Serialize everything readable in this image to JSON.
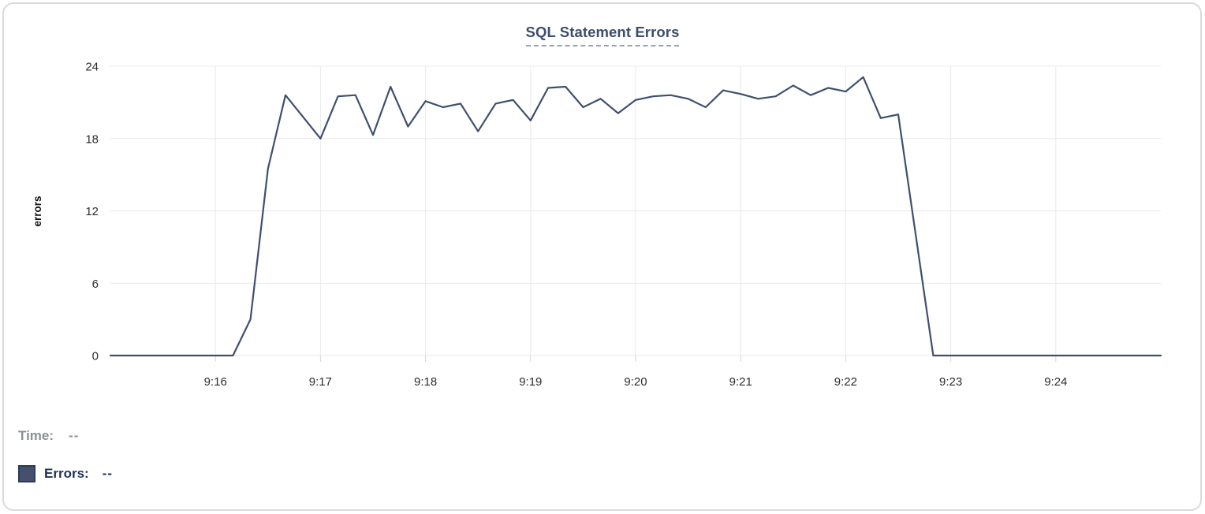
{
  "title": "SQL Statement Errors",
  "tooltip": {
    "time_label": "Time:",
    "time_value": "--",
    "errors_label": "Errors:",
    "errors_value": "--"
  },
  "colors": {
    "line": "#3f4f6f",
    "swatch_fill": "#44506c",
    "swatch_border": "#2c3b5d",
    "title": "#3c4e6d",
    "time_row": "#8b8f96",
    "errors_row": "#1f3156",
    "gridline": "#e8e8e8"
  },
  "chart_data": {
    "type": "line",
    "title": "SQL Statement Errors",
    "xlabel": "",
    "ylabel": "errors",
    "ylim": [
      0,
      24
    ],
    "y_ticks": [
      0,
      6,
      12,
      18,
      24
    ],
    "x_ticks": [
      "9:16",
      "9:17",
      "9:18",
      "9:19",
      "9:20",
      "9:21",
      "9:22",
      "9:23",
      "9:24"
    ],
    "x_range": [
      "9:15:00",
      "9:25:00"
    ],
    "grid": true,
    "legend_position": "bottom-left",
    "series": [
      {
        "name": "Errors",
        "color": "#3f4f6f",
        "times": [
          "9:15:00",
          "9:15:10",
          "9:15:20",
          "9:15:30",
          "9:15:40",
          "9:15:50",
          "9:16:00",
          "9:16:10",
          "9:16:20",
          "9:16:30",
          "9:16:40",
          "9:16:50",
          "9:17:00",
          "9:17:10",
          "9:17:20",
          "9:17:30",
          "9:17:40",
          "9:17:50",
          "9:18:00",
          "9:18:10",
          "9:18:20",
          "9:18:30",
          "9:18:40",
          "9:18:50",
          "9:19:00",
          "9:19:10",
          "9:19:20",
          "9:19:30",
          "9:19:40",
          "9:19:50",
          "9:20:00",
          "9:20:10",
          "9:20:20",
          "9:20:30",
          "9:20:40",
          "9:20:50",
          "9:21:00",
          "9:21:10",
          "9:21:20",
          "9:21:30",
          "9:21:40",
          "9:21:50",
          "9:22:00",
          "9:22:10",
          "9:22:20",
          "9:22:30",
          "9:22:40",
          "9:22:50",
          "9:23:00",
          "9:23:10",
          "9:23:20",
          "9:23:30",
          "9:23:40",
          "9:23:50",
          "9:24:00",
          "9:24:10",
          "9:24:20",
          "9:24:30",
          "9:24:40",
          "9:24:50",
          "9:25:00"
        ],
        "values": [
          0,
          0,
          0,
          0,
          0,
          0,
          0,
          0,
          3,
          15.5,
          21.6,
          19.8,
          18,
          21.5,
          21.6,
          18.3,
          22.3,
          19,
          21.1,
          20.6,
          20.9,
          18.6,
          20.9,
          21.2,
          19.5,
          22.2,
          22.3,
          20.6,
          21.3,
          20.1,
          21.2,
          21.5,
          21.6,
          21.3,
          20.6,
          22,
          21.7,
          21.3,
          21.5,
          22.4,
          21.6,
          22.2,
          21.9,
          23.1,
          19.7,
          20,
          10,
          0,
          0,
          0,
          0,
          0,
          0,
          0,
          0,
          0,
          0,
          0,
          0,
          0,
          0
        ]
      }
    ]
  }
}
